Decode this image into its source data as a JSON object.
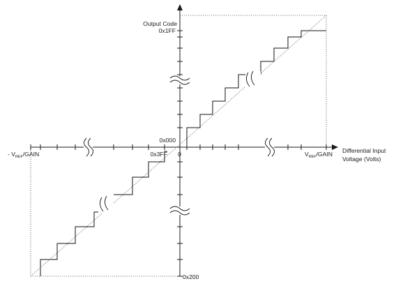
{
  "figure": {
    "y_axis_title": "Output Code",
    "x_axis_title_line1": "Differential Input",
    "x_axis_title_line2": "Voltage (Volts)",
    "code_max": "0x1FF",
    "code_zero": "0x000",
    "code_minus_one": "0x3FF",
    "code_min": "0x200",
    "origin": "0",
    "neg_ref_prefix": "- V",
    "pos_ref_prefix": "V",
    "ref_subscript": "REF",
    "ref_suffix": "/GAIN"
  }
}
